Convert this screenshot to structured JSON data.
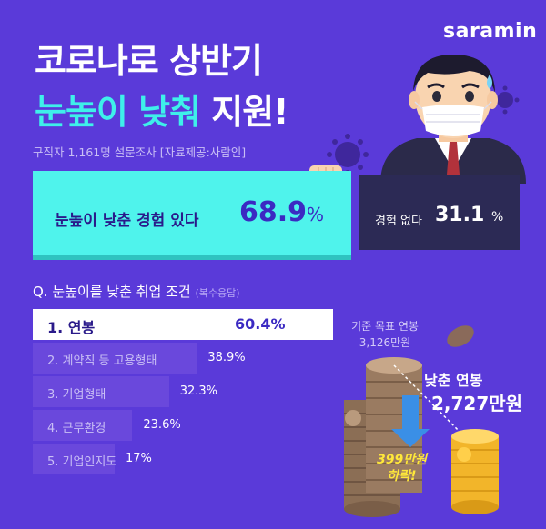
{
  "brand": {
    "logo": "saramin"
  },
  "title": {
    "line1": "코로나로 상반기",
    "line2_highlight": "눈높이 낮춰",
    "line2_rest": "지원!"
  },
  "survey_note": "구직자 1,161명 설문조사 [자료제공:사람인]",
  "experience": {
    "yes_label": "눈높이 낮춘 경험 있다",
    "yes_value": "68.9",
    "no_label": "경험 없다",
    "no_value": "31.1",
    "percent_sign": "%"
  },
  "conditions": {
    "title": "Q. 눈높이를 낮춘 취업 조건",
    "subtitle": "(복수응답)"
  },
  "salary": {
    "base_label": "기준 목표 연봉",
    "base_value": "3,126만원",
    "lowered_label": "낮춘 연봉",
    "lowered_value": "2,727만원",
    "drop_line1": "399만원",
    "drop_line2": "하락!"
  },
  "colors": {
    "background": "#5a3ad9",
    "accent_cyan": "#4ff3ec",
    "dark_box": "#2c2a55",
    "coin_gold": "#f2b52a",
    "drop_arrow": "#3a8fe6"
  },
  "chart_data": {
    "type": "bar",
    "orientation": "horizontal",
    "categories": [
      "1. 연봉",
      "2. 계약직 등 고용형태",
      "3. 기업형태",
      "4. 근무환경",
      "5. 기업인지도"
    ],
    "values": [
      60.4,
      38.9,
      32.3,
      23.6,
      17
    ],
    "value_labels": [
      "60.4%",
      "38.9%",
      "32.3%",
      "23.6%",
      "17%"
    ],
    "title": "Q. 눈높이를 낮춘 취업 조건",
    "xlabel": "",
    "ylabel": "",
    "xlim": [
      0,
      70
    ]
  }
}
